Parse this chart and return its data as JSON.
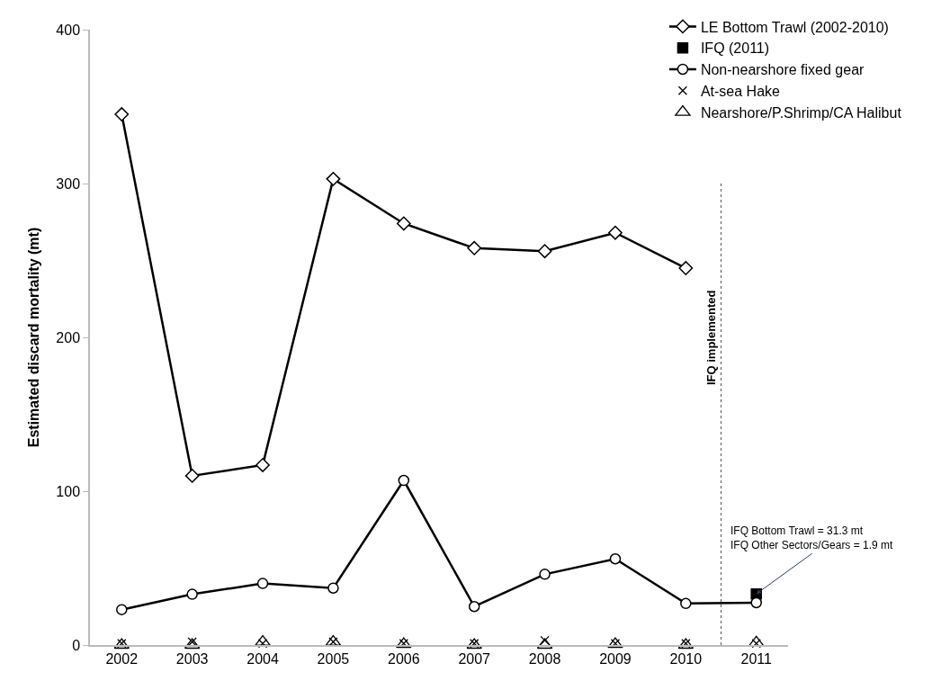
{
  "chart_data": {
    "type": "line",
    "ylabel": "Estimated discard mortality (mt)",
    "x": [
      2002,
      2003,
      2004,
      2005,
      2006,
      2007,
      2008,
      2009,
      2010,
      2011
    ],
    "xlim": [
      2001.55,
      2011.45
    ],
    "xticks": [
      2002,
      2003,
      2004,
      2005,
      2006,
      2007,
      2008,
      2009,
      2010,
      2011
    ],
    "ylim": [
      0,
      400
    ],
    "yticks": [
      0,
      100,
      200,
      300,
      400
    ],
    "legend": "top right",
    "series": [
      {
        "name": "LE Bottom Trawl (2002-2010)",
        "marker": "diamond",
        "color": "#000000",
        "values": [
          345,
          110,
          117,
          303,
          274,
          258,
          256,
          268,
          245,
          null
        ]
      },
      {
        "name": "IFQ (2011)",
        "type": "scatter",
        "marker": "square",
        "color": "#000000",
        "values": [
          null,
          null,
          null,
          null,
          null,
          null,
          null,
          null,
          null,
          33.2
        ]
      },
      {
        "name": "Non-nearshore fixed gear",
        "marker": "circle",
        "color": "#000000",
        "values": [
          23,
          33,
          40,
          37,
          107,
          25,
          46,
          56,
          27,
          27.5
        ]
      },
      {
        "name": "At-sea Hake",
        "type": "scatter",
        "marker": "cross",
        "color": "#000000",
        "values": [
          1,
          2,
          1,
          2,
          1,
          1,
          3,
          1,
          1,
          1
        ]
      },
      {
        "name": "Nearshore/P.Shrimp/CA Halibut",
        "type": "scatter",
        "marker": "triangle",
        "color": "#000000",
        "values": [
          0,
          0,
          2,
          2,
          0.5,
          0,
          0,
          0.5,
          0,
          1.5
        ]
      }
    ],
    "ref_lines": [
      {
        "axis": "x",
        "value": 2010.5,
        "label": "IFQ implemented",
        "color": "#555555",
        "line_style": "dotted"
      }
    ],
    "annotations": [
      {
        "text": "IFQ Bottom Trawl = 31.3 mt\nIFQ Other Sectors/Gears = 1.9 mt",
        "x": 2011,
        "y": 33.2
      }
    ]
  }
}
